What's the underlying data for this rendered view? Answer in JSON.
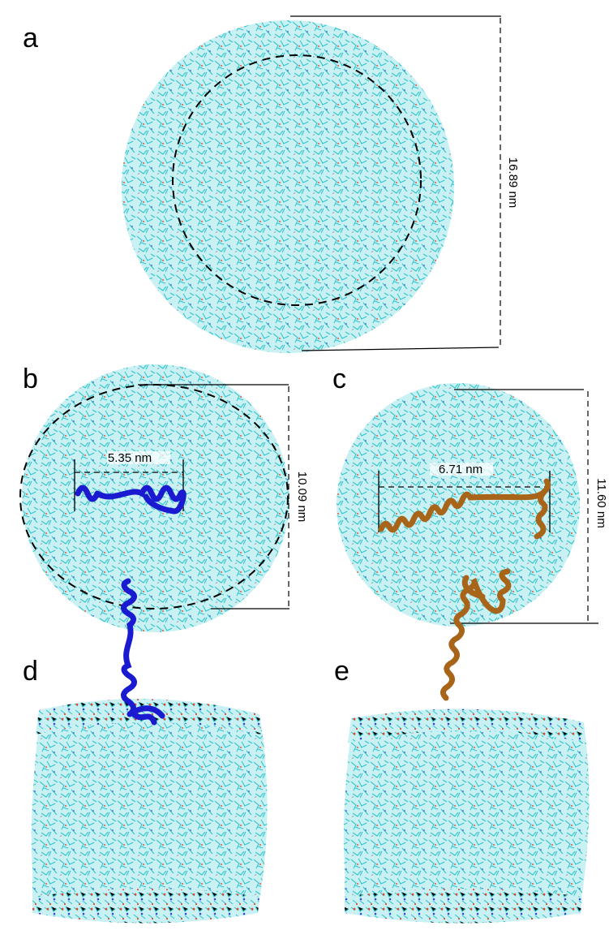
{
  "panels": [
    {
      "label": "a",
      "measurements": [
        "16.89 nm"
      ]
    },
    {
      "label": "b",
      "measurements": [
        "5.35 nm",
        "10.09 nm"
      ]
    },
    {
      "label": "c",
      "measurements": [
        "6.71 nm",
        "11.60 nm"
      ]
    },
    {
      "label": "d"
    },
    {
      "label": "e"
    }
  ]
}
